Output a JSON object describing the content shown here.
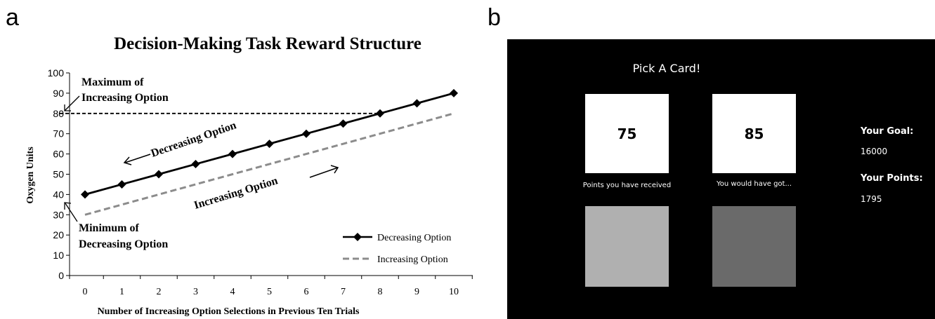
{
  "panels": {
    "a": "a",
    "b": "b"
  },
  "chart_data": {
    "type": "line",
    "title": "Decision-Making Task Reward Structure",
    "xlabel": "Number  of Increasing  Option  Selections in Previous  Ten Trials",
    "ylabel": "Oxygen  Units",
    "x": [
      0,
      1,
      2,
      3,
      4,
      5,
      6,
      7,
      8,
      9,
      10
    ],
    "xlim": [
      0,
      10
    ],
    "ylim": [
      0,
      100
    ],
    "yticks": [
      0,
      10,
      20,
      30,
      40,
      50,
      60,
      70,
      80,
      90,
      100
    ],
    "grid": false,
    "legend_position": "bottom-right",
    "series": [
      {
        "name": "Decreasing Option",
        "values": [
          40,
          45,
          50,
          55,
          60,
          65,
          70,
          75,
          80,
          85,
          90
        ],
        "color": "#000000",
        "style": "solid-diamond"
      },
      {
        "name": "Increasing Option",
        "values": [
          30,
          35,
          40,
          45,
          50,
          55,
          60,
          65,
          70,
          75,
          80
        ],
        "color": "#8c8c8c",
        "style": "dashed"
      }
    ],
    "reference_line": {
      "y": 80,
      "style": "dashed",
      "color": "#000000"
    },
    "annotations": {
      "max_label_1": "Maximum of",
      "max_label_2": "Increasing Option",
      "min_label_1": "Minimum of",
      "min_label_2": "Decreasing Option",
      "decreasing_label": "Decreasing Option",
      "increasing_label": "Increasing Option"
    }
  },
  "task_screen": {
    "title": "Pick A Card!",
    "card_left_value": "75",
    "card_right_value": "85",
    "card_left_caption": "Points you have received",
    "card_right_caption": "You would have got...",
    "goal_label": "Your Goal:",
    "goal_value": "16000",
    "points_label": "Your Points:",
    "points_value": "1795",
    "colors": {
      "background": "#000000",
      "card_front": "#ffffff",
      "card_back_light": "#b0b0b0",
      "card_back_dark": "#6a6a6a"
    }
  }
}
